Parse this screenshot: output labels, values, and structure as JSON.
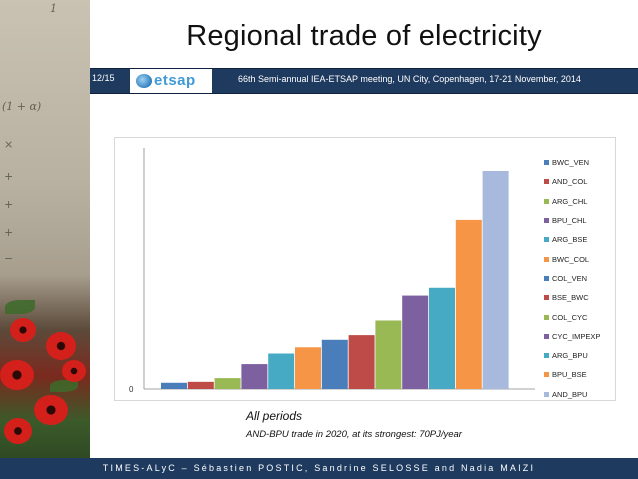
{
  "slide": {
    "title": "Regional trade of electricity",
    "number": "12/15",
    "logo_text": "etsap",
    "meeting": "66th Semi-annual IEA-ETSAP meeting, UN City, Copenhagen, 17-21 November, 2014",
    "caption_main": "All periods",
    "caption_sub": "AND-BPU trade in 2020, at its strongest: 70PJ/year",
    "footer": "TIMES-ALyC – Sébastien POSTIC, Sandrine SELOSSE and Nadia MAIZI",
    "side_formula": [
      "1",
      "(1 + α)",
      "×",
      "+",
      "+",
      "+",
      "−"
    ],
    "colors": {
      "header": "#1f3a5f",
      "footer": "#1f3a5f"
    }
  },
  "chart_data": {
    "type": "bar",
    "ytick_labels": [
      "0"
    ],
    "legend_position": "right",
    "grid": false,
    "categories": [
      "BWC_VEN",
      "AND_COL",
      "ARG_CHL",
      "BPU_CHL",
      "ARG_BSE",
      "BWC_COL",
      "COL_VEN",
      "BSE_BWC",
      "COL_CYC",
      "CYC_IMPEXP",
      "ARG_BPU",
      "BPU_BSE",
      "AND_BPU"
    ],
    "values": [
      2,
      2.3,
      3.5,
      8,
      11.4,
      13.4,
      15.8,
      17.3,
      22,
      30,
      32.5,
      54.3,
      70
    ],
    "colors": [
      "#4a7ebb",
      "#be4b48",
      "#98b954",
      "#7d60a0",
      "#46aac5",
      "#f69546",
      "#4a7ebb",
      "#be4b48",
      "#98b954",
      "#7d60a0",
      "#46aac5",
      "#f69546",
      "#a7b9dc"
    ],
    "ylim": [
      0,
      70
    ]
  }
}
